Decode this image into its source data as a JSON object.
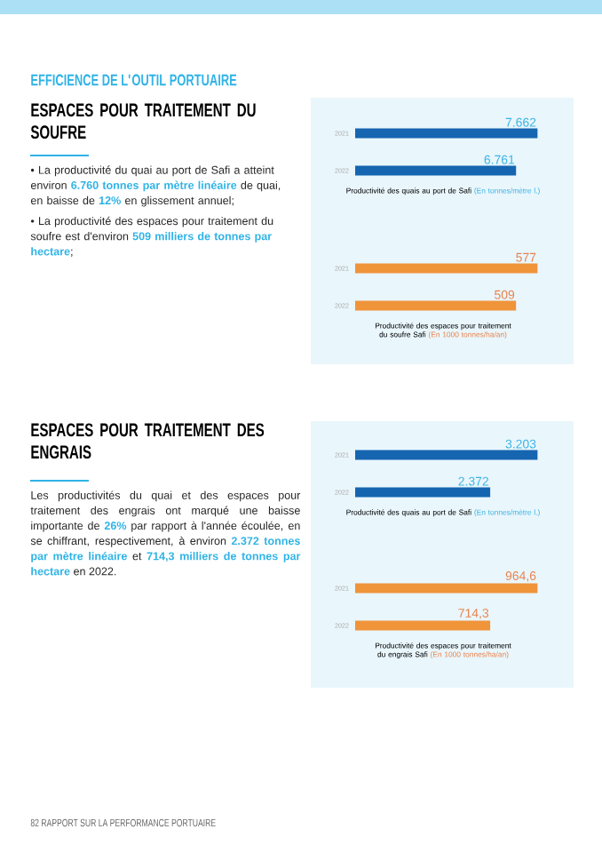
{
  "chart_data": [
    {
      "type": "other",
      "title": "EFFICIENCE DE L'OUTIL PORTUAIRE",
      "subtitle": "ESPACES POUR TRAITEMENT DU SOUFRE",
      "annotations": [
        "• La productivité du quai au port de Safi a atteint environ **6.760 tonnes par mètre linéaire** de quai, en baisse de **12%** en glissement annuel;",
        "• La productivité des espaces pour traitement du soufre est d'environ **509 milliers de tonnes par hectare**;"
      ]
    },
    {
      "type": "bar",
      "orientation": "horizontal",
      "title": "Productivité des quais au port de Safi",
      "subtitle": "(En tonnes/mètre l.)",
      "categories": [
        "2021",
        "2022"
      ],
      "values": [
        7662,
        6761
      ],
      "value_labels": [
        "7.662",
        "6.761"
      ],
      "color": "#1565b0"
    },
    {
      "type": "bar",
      "orientation": "horizontal",
      "title": "Productivité des espaces pour traitement du soufre Safi",
      "subtitle": "(En 1000 tonnes/ha/an)",
      "categories": [
        "2021",
        "2022"
      ],
      "values": [
        577,
        509
      ],
      "value_labels": [
        "577",
        "509"
      ],
      "color": "#f0943a"
    },
    {
      "type": "other",
      "subtitle": "ESPACES POUR TRAITEMENT DES ENGRAIS",
      "annotations": [
        "Les productivités du quai et des espaces pour traitement des engrais ont marqué une baisse importante de **26%** par rapport à l'année écoulée, en se chiffrant, respectivement, à environ **2.372 tonnes par mètre linéaire** et **714,3 milliers de tonnes par hectare** en 2022.",
        "82 RAPPORT SUR LA PERFORMANCE PORTUAIRE"
      ]
    },
    {
      "type": "bar",
      "orientation": "horizontal",
      "title": "Productivité des quais au port de Safi",
      "subtitle": "(En tonnes/mètre l.)",
      "categories": [
        "2021",
        "2022"
      ],
      "values": [
        3203,
        2372
      ],
      "value_labels": [
        "3.203",
        "2.372"
      ],
      "color": "#1565b0"
    },
    {
      "type": "bar",
      "orientation": "horizontal",
      "title": "Productivité des espaces pour traitement du engrais Safi",
      "subtitle": "(En 1000 tonnes/ha/an)",
      "categories": [
        "2021",
        "2022"
      ],
      "values": [
        964.6,
        714.3
      ],
      "value_labels": [
        "964,6",
        "714,3"
      ],
      "color": "#f0943a"
    }
  ]
}
